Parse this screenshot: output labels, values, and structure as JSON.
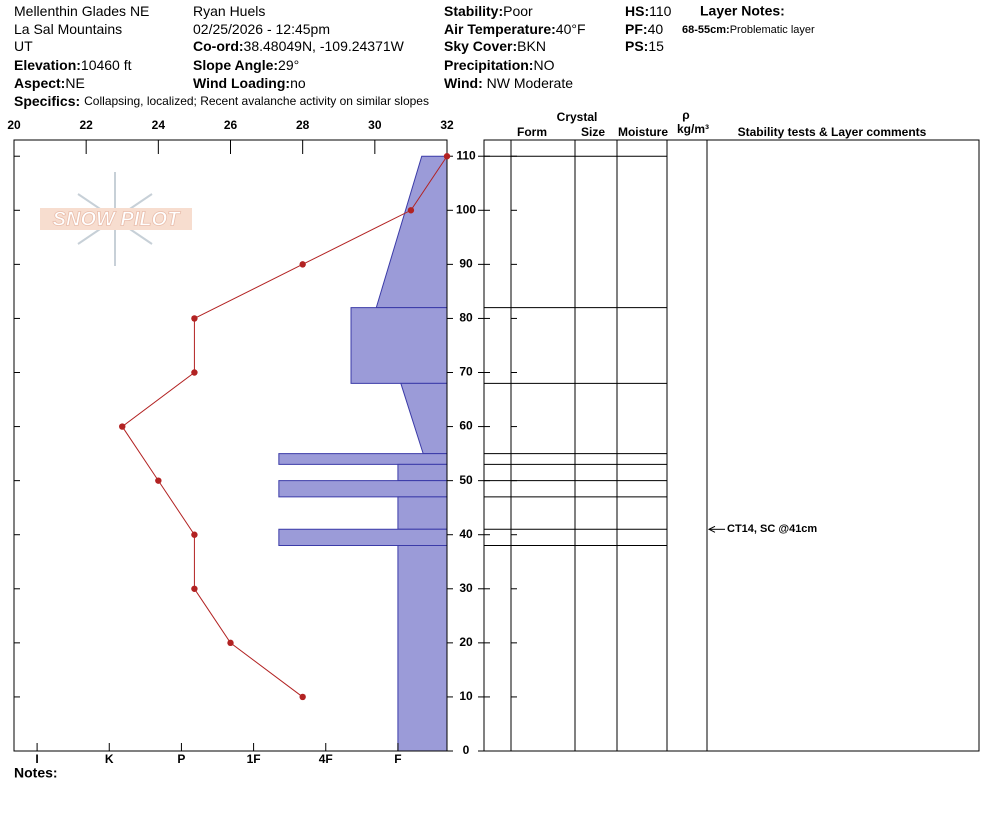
{
  "header": {
    "col1": [
      {
        "text": "Mellenthin Glades NE"
      },
      {
        "text": "La Sal Mountains"
      },
      {
        "text": "UT"
      },
      {
        "label": "Elevation:",
        "text": "10460 ft"
      },
      {
        "label": "Aspect:",
        "text": "NE"
      }
    ],
    "col2": [
      {
        "text": "Ryan Huels"
      },
      {
        "text": "02/25/2026 - 12:45pm"
      },
      {
        "label": "Co-ord:",
        "text": "38.48049N, -109.24371W"
      },
      {
        "label": "Slope Angle:",
        "text": "29°"
      },
      {
        "label": "Wind Loading:",
        "text": "no"
      }
    ],
    "col3": [
      {
        "label": "Stability:",
        "text": "Poor"
      },
      {
        "label": "Air Temperature:",
        "text": "40°F"
      },
      {
        "label": "Sky Cover:",
        "text": "BKN"
      },
      {
        "label": "Precipitation:",
        "text": "NO"
      },
      {
        "label": "Wind:",
        "text": " NW Moderate"
      }
    ],
    "col4": [
      {
        "label": "HS:",
        "text": 110
      },
      {
        "label": "PF:",
        "text": 40
      },
      {
        "label": "PS:",
        "text": 15
      }
    ],
    "specifics": {
      "label": "Specifics:",
      "text": "Collapsing, localized; Recent avalanche activity on similar slopes"
    },
    "layer_notes": {
      "title": "Layer Notes:",
      "items": [
        {
          "label": "68-55cm:",
          "text": "Problematic layer"
        }
      ]
    },
    "logo": "SNOW PILOT",
    "notes": "Notes:"
  },
  "chart_data": {
    "type": "snow-profile",
    "ylim": [
      0,
      113
    ],
    "yticks": [
      0,
      10,
      20,
      30,
      40,
      50,
      60,
      70,
      80,
      90,
      100,
      110
    ],
    "temperature": {
      "xlim": [
        20,
        32
      ],
      "xticks": [
        20,
        22,
        24,
        26,
        28,
        30,
        32
      ],
      "color": "#b22222",
      "depths": [
        110,
        100,
        90,
        80,
        70,
        60,
        50,
        40,
        30,
        20,
        10
      ],
      "values": [
        32,
        31,
        28,
        25,
        25,
        23,
        24,
        25,
        25,
        26,
        28
      ]
    },
    "hardness": {
      "xlim": [
        6.32,
        0.32
      ],
      "color": "#9b9bd8",
      "xticks": [
        {
          "value": 6,
          "label": "I"
        },
        {
          "value": 5,
          "label": "K"
        },
        {
          "value": 4,
          "label": "P"
        },
        {
          "value": 3,
          "label": "1F"
        },
        {
          "value": 2,
          "label": "4F"
        },
        {
          "value": 1,
          "label": "F"
        }
      ]
    },
    "layer_tops": [
      110,
      82,
      68,
      55,
      53,
      50,
      47,
      41,
      38
    ],
    "layer_bottoms": [
      82,
      68,
      55,
      53,
      50,
      47,
      41,
      38,
      0
    ],
    "hardness_top": [
      0.67,
      1.65,
      0.96,
      2.65,
      1,
      2.65,
      1,
      2.65,
      1
    ],
    "hardness_bottom": [
      1.3,
      1.65,
      0.65,
      2.65,
      1,
      2.65,
      1,
      2.65,
      1
    ],
    "columns": {
      "crystal": "Crystal",
      "form": "Form",
      "size": "Size",
      "moisture": "Moisture",
      "rho": "ρ",
      "density_unit": "kg/m³",
      "comments": "Stability tests & Layer comments"
    },
    "tests": [
      {
        "depth": 41,
        "text": "CT14, SC @41cm"
      }
    ]
  }
}
